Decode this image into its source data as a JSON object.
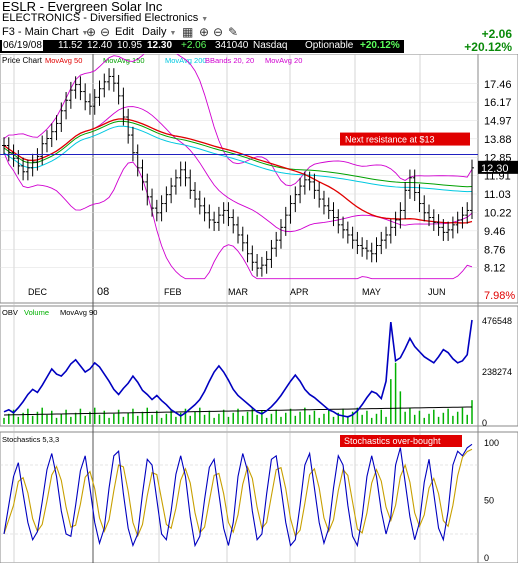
{
  "header": {
    "ticker_title": "ESLR - Evergreen Solar Inc",
    "sector": "ELECTRONICS - Diversified Electronics",
    "main_chart_label": "F3 - Main Chart",
    "edit_label": "Edit",
    "period_label": "Daily",
    "change_abs": "+2.06",
    "change_pct": "+20.12%"
  },
  "quote": {
    "date": "06/19/08",
    "open": "11.52",
    "high": "12.40",
    "low": "10.95",
    "close": "12.30",
    "change": "+2.06",
    "volume": "341040",
    "exchange": "Nasdaq",
    "optionable": "Optionable",
    "pct": "+20.12%"
  },
  "colors": {
    "price_candles": "#000000",
    "ma50": "#e00000",
    "ma150": "#00a000",
    "ma200": "#00c8e0",
    "bbands": "#d000d0",
    "ma20": "#d000d0",
    "obv": "#0000c0",
    "volume_bars": "#00b000",
    "volume_ma": "#000000",
    "stoch_k": "#0000c0",
    "stoch_d": "#c8a000",
    "annotation_bg": "#e00000",
    "resistance_line": "#2020c0",
    "gain_text": "#0a8a0a"
  },
  "chart_data": [
    {
      "type": "line",
      "panel": "price",
      "title": "Price Chart",
      "legend": [
        "MovAvg 50",
        "MovAvg 150",
        "MovAvg 200",
        "BBands 20, 20",
        "MovAvg 20"
      ],
      "yticks": [
        17.46,
        16.17,
        14.97,
        13.88,
        12.85,
        11.91,
        11.03,
        10.22,
        9.46,
        8.76,
        8.12
      ],
      "ylim": [
        7.55,
        18.8
      ],
      "y_scale": "log",
      "xticks": [
        "DEC",
        "08",
        "FEB",
        "MAR",
        "APR",
        "MAY",
        "JUN"
      ],
      "last_price": 12.3,
      "pct_label": "7.98%",
      "annotation": "Next resistance at $13",
      "resistance_level": 13.0,
      "close_series": [
        13.5,
        13.1,
        12.8,
        12.4,
        12.1,
        12.3,
        12.6,
        12.9,
        13.6,
        13.9,
        14.3,
        14.8,
        15.6,
        16.3,
        17.0,
        17.4,
        16.9,
        16.2,
        15.9,
        16.5,
        17.1,
        17.6,
        18.0,
        17.5,
        16.6,
        15.2,
        14.1,
        13.1,
        12.3,
        11.6,
        10.9,
        10.4,
        10.2,
        10.6,
        11.0,
        11.4,
        11.8,
        12.2,
        11.8,
        11.2,
        10.8,
        10.5,
        10.2,
        9.9,
        9.8,
        10.1,
        10.3,
        10.0,
        9.7,
        9.3,
        9.0,
        8.6,
        8.3,
        8.1,
        8.2,
        8.4,
        8.8,
        9.1,
        9.6,
        10.1,
        10.6,
        11.0,
        11.4,
        11.7,
        11.6,
        11.2,
        10.8,
        10.5,
        10.3,
        10.0,
        9.7,
        9.5,
        9.3,
        9.1,
        8.9,
        8.8,
        8.7,
        8.6,
        8.9,
        9.1,
        9.3,
        9.6,
        9.9,
        10.3,
        11.2,
        11.8,
        11.1,
        10.6,
        10.2,
        10.0,
        9.8,
        9.6,
        9.4,
        9.5,
        9.7,
        9.9,
        10.1,
        10.3,
        12.3
      ]
    },
    {
      "type": "area",
      "panel": "volume",
      "legend": [
        "OBV",
        "Volume",
        "MovAvg 90"
      ],
      "yticks": [
        476548,
        238274,
        0
      ],
      "ylim": [
        0,
        476548
      ],
      "obv_series": [
        0.1,
        0.12,
        0.09,
        0.14,
        0.2,
        0.27,
        0.32,
        0.29,
        0.36,
        0.44,
        0.52,
        0.47,
        0.45,
        0.5,
        0.57,
        0.61,
        0.55,
        0.49,
        0.52,
        0.58,
        0.54,
        0.47,
        0.4,
        0.32,
        0.27,
        0.33,
        0.38,
        0.45,
        0.39,
        0.31,
        0.27,
        0.22,
        0.26,
        0.21,
        0.17,
        0.12,
        0.09,
        0.06,
        0.09,
        0.13,
        0.17,
        0.22,
        0.3,
        0.4,
        0.49,
        0.55,
        0.49,
        0.41,
        0.32,
        0.26,
        0.22,
        0.18,
        0.14,
        0.1,
        0.08,
        0.11,
        0.15,
        0.2,
        0.26,
        0.33,
        0.4,
        0.46,
        0.4,
        0.32,
        0.27,
        0.24,
        0.2,
        0.16,
        0.12,
        0.1,
        0.07,
        0.06,
        0.05,
        0.07,
        0.11,
        0.17,
        0.24,
        0.3,
        0.28,
        0.23,
        0.4,
        0.98,
        0.6,
        0.63,
        0.72,
        0.82,
        0.74,
        0.69,
        0.64,
        0.61,
        0.58,
        0.64,
        0.71,
        0.68,
        0.62,
        0.58,
        0.6,
        0.66,
        1.0
      ]
    },
    {
      "type": "line",
      "panel": "stochastics",
      "legend": [
        "Stochastics 5,3,3"
      ],
      "annotation": "Stochastics over-bought",
      "yticks": [
        100,
        50,
        0
      ],
      "ylim": [
        0,
        100
      ],
      "k_series": [
        20,
        45,
        70,
        82,
        55,
        30,
        15,
        22,
        48,
        76,
        90,
        70,
        40,
        20,
        18,
        45,
        75,
        88,
        60,
        30,
        12,
        25,
        60,
        88,
        92,
        55,
        25,
        10,
        20,
        55,
        85,
        80,
        50,
        20,
        15,
        40,
        72,
        88,
        70,
        35,
        10,
        18,
        50,
        78,
        85,
        55,
        25,
        10,
        30,
        70,
        90,
        75,
        40,
        15,
        20,
        55,
        85,
        88,
        60,
        30,
        10,
        15,
        45,
        80,
        90,
        60,
        30,
        12,
        25,
        60,
        88,
        80,
        45,
        18,
        10,
        35,
        70,
        88,
        70,
        40,
        20,
        35,
        80,
        95,
        65,
        35,
        15,
        30,
        65,
        85,
        55,
        25,
        15,
        40,
        80,
        92,
        88,
        95,
        98
      ]
    }
  ]
}
